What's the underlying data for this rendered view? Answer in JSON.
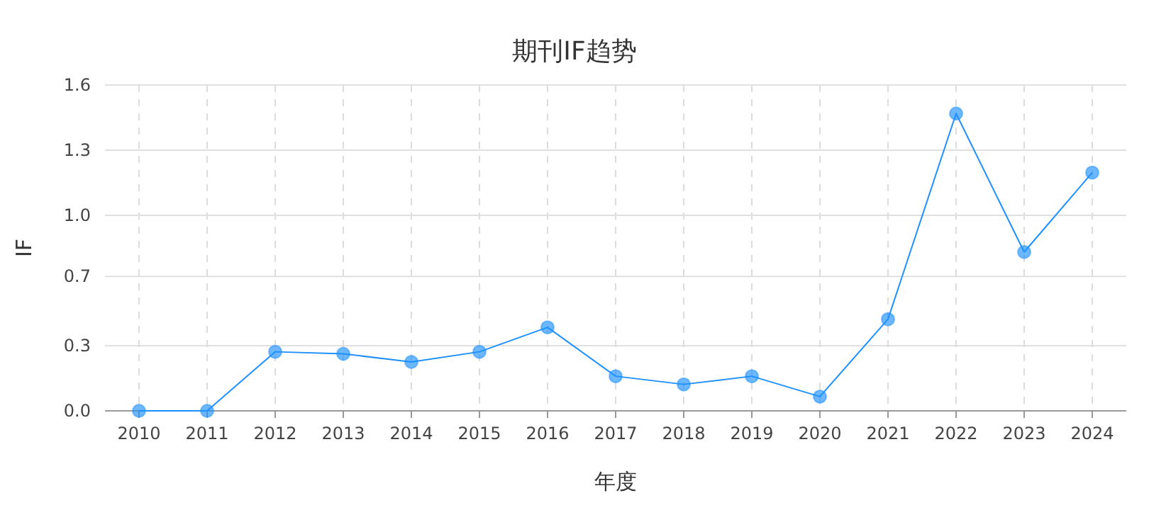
{
  "chart_data": {
    "type": "line",
    "title": "期刊IF趋势",
    "xlabel": "年度",
    "ylabel": "IF",
    "categories": [
      "2010",
      "2011",
      "2012",
      "2013",
      "2014",
      "2015",
      "2016",
      "2017",
      "2018",
      "2019",
      "2020",
      "2021",
      "2022",
      "2023",
      "2024"
    ],
    "series": [
      {
        "color": "#1e90ff",
        "values": [
          0,
          0,
          0.29,
          0.28,
          0.24,
          0.29,
          0.41,
          0.17,
          0.13,
          0.17,
          0.07,
          0.45,
          1.46,
          0.78,
          1.17
        ]
      }
    ],
    "ylim": [
      0,
      1.6
    ],
    "yticks": [
      {
        "value": 0,
        "label": "0.0"
      },
      {
        "value": 0.32,
        "label": "0.3"
      },
      {
        "value": 0.66,
        "label": "0.7"
      },
      {
        "value": 0.96,
        "label": "1.0"
      },
      {
        "value": 1.28,
        "label": "1.3"
      },
      1.6
    ],
    "grid": true,
    "marker": "circle",
    "line_style": "solid"
  }
}
